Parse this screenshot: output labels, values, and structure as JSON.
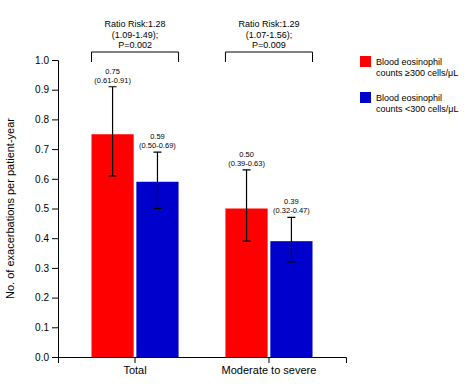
{
  "chart_data": {
    "type": "bar",
    "categories": [
      "Total",
      "Moderate to severe"
    ],
    "series": [
      {
        "name": "Blood eosinophil\ncounts ≥300 cells/μL",
        "color": "#FF0000",
        "values": [
          0.75,
          0.5
        ],
        "ci_low": [
          0.61,
          0.39
        ],
        "ci_high": [
          0.91,
          0.63
        ],
        "value_labels": [
          "0.75\n(0.61-0.91)",
          "0.50\n(0.39-0.63)"
        ]
      },
      {
        "name": "Blood eosinophil\ncounts <300 cells/μL",
        "color": "#0000CD",
        "values": [
          0.59,
          0.39
        ],
        "ci_low": [
          0.5,
          0.32
        ],
        "ci_high": [
          0.69,
          0.47
        ],
        "value_labels": [
          "0.59\n(0.50-0.69)",
          "0.39\n(0.32-0.47)"
        ]
      }
    ],
    "ylabel": "No. of exacerbations per patient-year",
    "ylim": [
      0.0,
      1.0
    ],
    "yticks": [
      {
        "value": 0.0,
        "label": "0.0"
      },
      0.1,
      0.2,
      0.3,
      0.4,
      0.5,
      0.6,
      0.7,
      0.8,
      0.9,
      {
        "value": 1.0,
        "label": "1.0"
      }
    ],
    "annotations": [
      {
        "text": "Ratio Risk:1.28\n(1.09-1.49);\nP=0.002",
        "category": "Total"
      },
      {
        "text": "Ratio Risk:1.29\n(1.07-1.56);\nP=0.009",
        "category": "Moderate to severe"
      }
    ],
    "data_labels": true,
    "grid": false,
    "legend": "upper right"
  }
}
